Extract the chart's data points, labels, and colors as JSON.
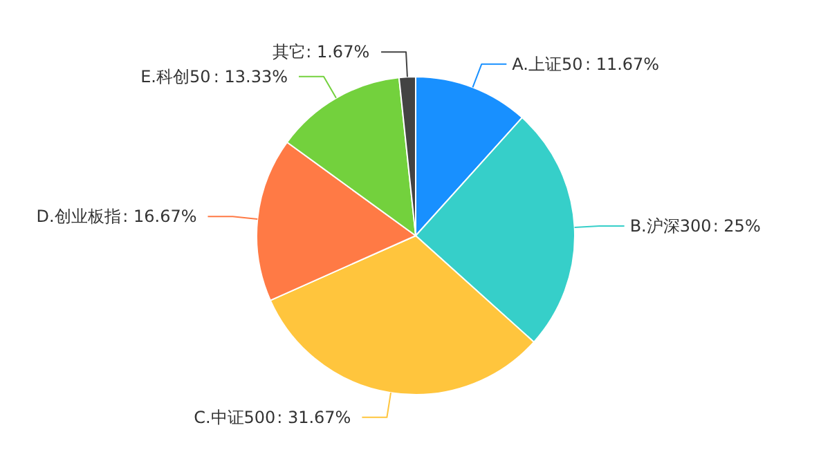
{
  "chart_data": {
    "type": "pie",
    "categories": [
      "A.上证50",
      "B.沪深300",
      "C.中证500",
      "D.创业板指",
      "E.科创50",
      "其它"
    ],
    "values": [
      11.67,
      25,
      31.67,
      16.67,
      13.33,
      1.67
    ],
    "colors": [
      "#1890ff",
      "#36cfc9",
      "#ffc53d",
      "#ff7a45",
      "#73d13d",
      "#434343"
    ],
    "value_labels": [
      ": 11.67%",
      ": 25%",
      ": 31.67%",
      ": 16.67%",
      ": 13.33%",
      ": 1.67%"
    ]
  }
}
